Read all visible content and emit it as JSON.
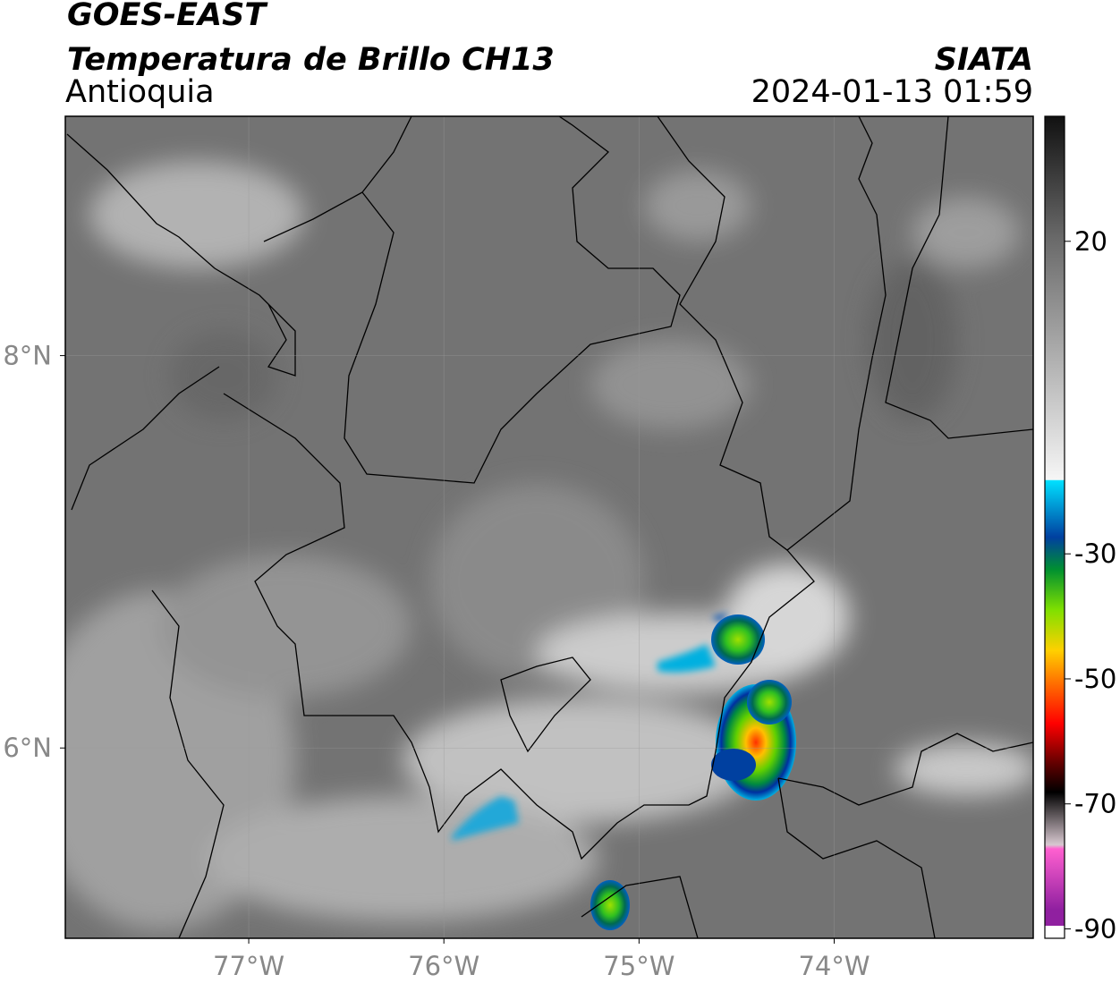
{
  "title": "GOES-EAST",
  "subtitle": "Temperatura de Brillo CH13",
  "region": "Antioquia",
  "source": "SIATA",
  "datetime": "2024-01-13 01:59",
  "map": {
    "xlim": [
      -77.94,
      -72.98
    ],
    "ylim": [
      5.03,
      9.22
    ],
    "xticks": [
      {
        "value": -77,
        "label": "77°W"
      },
      {
        "value": -76,
        "label": "76°W"
      },
      {
        "value": -75,
        "label": "75°W"
      },
      {
        "value": -74,
        "label": "74°W"
      }
    ],
    "yticks": [
      {
        "value": 8,
        "label": "8°N"
      },
      {
        "value": 6,
        "label": "6°N"
      }
    ],
    "grid": true
  },
  "colorbar": {
    "lim": [
      -91.5,
      40
    ],
    "ticks": [
      20,
      -30,
      -50,
      -70,
      -90
    ]
  }
}
